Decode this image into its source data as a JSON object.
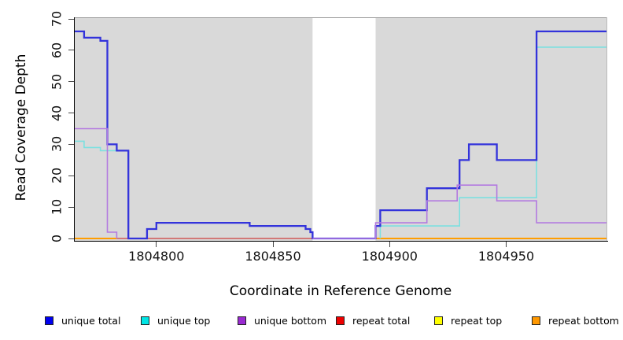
{
  "chart_data": {
    "type": "line",
    "step": true,
    "title": "",
    "xlabel": "Coordinate in Reference Genome",
    "ylabel": "Read Coverage Depth",
    "xlim": [
      1804765,
      1804993
    ],
    "ylim": [
      0,
      70
    ],
    "x_ticks": [
      1804800,
      1804850,
      1804900,
      1804950
    ],
    "y_ticks": [
      0,
      10,
      20,
      30,
      40,
      50,
      60,
      70
    ],
    "plot_bg": "#d9d9d9",
    "gray_regions": [
      [
        1804765,
        1804867
      ],
      [
        1804894,
        1804993
      ]
    ],
    "white_gap": [
      1804867,
      1804894
    ],
    "grid": false,
    "legend_position": "bottom",
    "series": [
      {
        "id": "repeat-top",
        "name": "repeat top",
        "color": "#ffff00",
        "width": 1.5,
        "segments": [
          [
            [
              1804765,
              0
            ],
            [
              1804993,
              0
            ]
          ]
        ]
      },
      {
        "id": "repeat-total",
        "name": "repeat total",
        "color": "#c9517b",
        "width": 1.6,
        "segments": [
          [
            [
              1804783,
              0
            ],
            [
              1804867,
              0
            ]
          ]
        ]
      },
      {
        "id": "repeat-bottom",
        "name": "repeat bottom",
        "color": "#ff9d00",
        "width": 2,
        "segments": [
          [
            [
              1804765,
              0
            ],
            [
              1804783,
              0
            ]
          ],
          [
            [
              1804894,
              0
            ],
            [
              1804993,
              0
            ]
          ]
        ]
      },
      {
        "id": "unique-top",
        "name": "unique top",
        "color": "#7ce0e0",
        "width": 1.6,
        "segments": [
          [
            [
              1804765,
              31
            ],
            [
              1804769,
              31
            ],
            [
              1804769,
              29
            ],
            [
              1804776,
              29
            ],
            [
              1804776,
              28
            ],
            [
              1804788,
              28
            ],
            [
              1804788,
              0
            ]
          ],
          [
            [
              1804896,
              0
            ],
            [
              1804896,
              4
            ],
            [
              1804930,
              4
            ],
            [
              1804930,
              13
            ],
            [
              1804963,
              13
            ],
            [
              1804963,
              61
            ],
            [
              1804993,
              61
            ]
          ]
        ]
      },
      {
        "id": "unique-total",
        "name": "unique total",
        "color": "#3333db",
        "width": 2.3,
        "segments": [
          [
            [
              1804765,
              66
            ],
            [
              1804769,
              66
            ],
            [
              1804769,
              64
            ],
            [
              1804776,
              64
            ],
            [
              1804776,
              63
            ],
            [
              1804779,
              63
            ],
            [
              1804779,
              30
            ],
            [
              1804783,
              30
            ],
            [
              1804783,
              28
            ],
            [
              1804788,
              28
            ],
            [
              1804788,
              0
            ],
            [
              1804796,
              0
            ],
            [
              1804796,
              3
            ],
            [
              1804800,
              3
            ],
            [
              1804800,
              5
            ],
            [
              1804840,
              5
            ],
            [
              1804840,
              4
            ],
            [
              1804864,
              4
            ],
            [
              1804864,
              3
            ],
            [
              1804866,
              3
            ],
            [
              1804866,
              2
            ],
            [
              1804867,
              2
            ],
            [
              1804867,
              0
            ],
            [
              1804894,
              0
            ],
            [
              1804894,
              4
            ],
            [
              1804896,
              4
            ],
            [
              1804896,
              9
            ],
            [
              1804916,
              9
            ],
            [
              1804916,
              16
            ],
            [
              1804930,
              16
            ],
            [
              1804930,
              25
            ],
            [
              1804934,
              25
            ],
            [
              1804934,
              30
            ],
            [
              1804946,
              30
            ],
            [
              1804946,
              25
            ],
            [
              1804963,
              25
            ],
            [
              1804963,
              66
            ],
            [
              1804993,
              66
            ]
          ]
        ]
      },
      {
        "id": "unique-bottom",
        "name": "unique bottom",
        "color": "#b37ae0",
        "width": 1.6,
        "segments": [
          [
            [
              1804765,
              35
            ],
            [
              1804779,
              35
            ],
            [
              1804779,
              2
            ],
            [
              1804783,
              2
            ],
            [
              1804783,
              0
            ]
          ],
          [
            [
              1804867,
              0
            ],
            [
              1804894,
              0
            ],
            [
              1804894,
              5
            ],
            [
              1804916,
              5
            ],
            [
              1804916,
              12
            ],
            [
              1804929,
              12
            ],
            [
              1804929,
              17
            ],
            [
              1804946,
              17
            ],
            [
              1804946,
              12
            ],
            [
              1804963,
              12
            ],
            [
              1804963,
              5
            ],
            [
              1804993,
              5
            ]
          ]
        ]
      }
    ]
  },
  "legend": {
    "items": [
      {
        "label": "unique total",
        "color": "#0000f0"
      },
      {
        "label": "unique top",
        "color": "#00e5e5"
      },
      {
        "label": "unique bottom",
        "color": "#9a2ad2"
      },
      {
        "label": "repeat total",
        "color": "#ee0000"
      },
      {
        "label": "repeat top",
        "color": "#ffff00"
      },
      {
        "label": "repeat bottom",
        "color": "#ff9800"
      }
    ]
  }
}
